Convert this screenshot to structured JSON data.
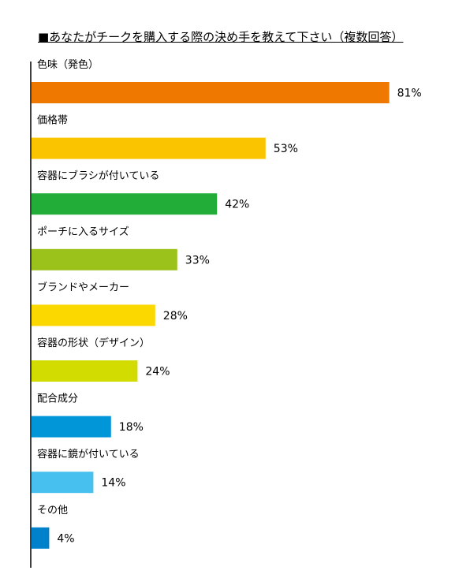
{
  "title": "■あなたがチークを購入する際の決め手を教えて下さい（複数回答）",
  "chart_data": {
    "type": "bar",
    "orientation": "horizontal",
    "title": "■あなたがチークを購入する際の決め手を教えて下さい（複数回答）",
    "xlabel": "",
    "ylabel": "",
    "xlim": [
      0,
      100
    ],
    "unit": "%",
    "categories": [
      "色味（発色）",
      "価格帯",
      "容器にブラシが付いている",
      "ポーチに入るサイズ",
      "ブランドやメーカー",
      "容器の形状（デザイン）",
      "配合成分",
      "容器に鏡が付いている",
      "その他"
    ],
    "values": [
      81,
      53,
      42,
      33,
      28,
      24,
      18,
      14,
      4
    ],
    "value_labels": [
      "81%",
      "53%",
      "42%",
      "33%",
      "28%",
      "24%",
      "18%",
      "14%",
      "4%"
    ],
    "colors": [
      "#ee7800",
      "#fbc400",
      "#22ac38",
      "#9bc21a",
      "#fbd800",
      "#d2dc00",
      "#0096d8",
      "#48c0ef",
      "#0081cc"
    ]
  }
}
